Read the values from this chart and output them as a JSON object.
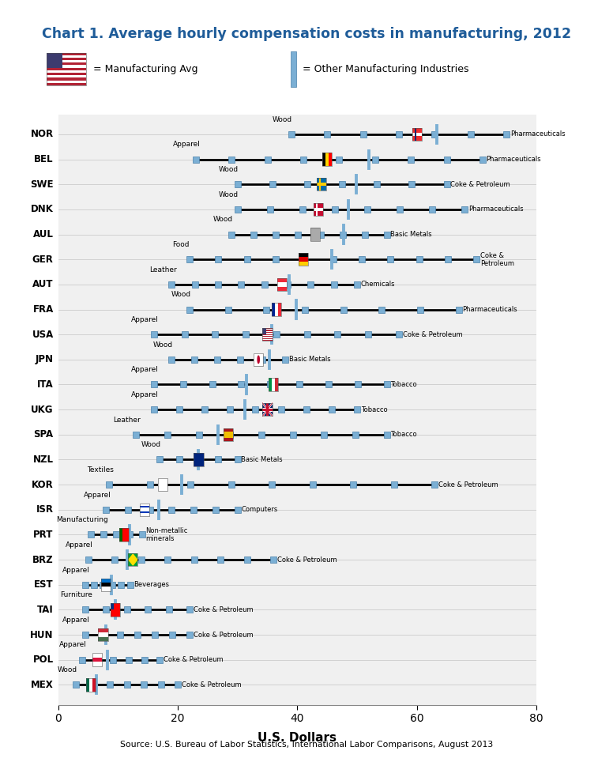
{
  "title": "Chart 1. Average hourly compensation costs in manufacturing, 2012",
  "xlabel": "U.S. Dollars",
  "source": "Source: U.S. Bureau of Labor Statistics, International Labor Comparisons, August 2013",
  "xlim": [
    0,
    80
  ],
  "xticks": [
    0,
    20,
    40,
    60,
    80
  ],
  "bg_color": "#ffffff",
  "plot_bg": "#f0f0f0",
  "title_color": "#1F5C99",
  "grid_color": "#cccccc",
  "marker_color": "#7BAFD4",
  "marker_edge_color": "#4a80aa",
  "line_color": "#000000",
  "avg_line_color": "#7BAFD4",
  "countries": [
    "NOR",
    "BEL",
    "SWE",
    "DNK",
    "AUL",
    "GER",
    "AUT",
    "FRA",
    "USA",
    "JPN",
    "ITA",
    "UKG",
    "SPA",
    "NZL",
    "KOR",
    "ISR",
    "PRT",
    "BRZ",
    "EST",
    "TAI",
    "HUN",
    "POL",
    "MEX"
  ],
  "avg": [
    63.4,
    52.0,
    49.8,
    48.5,
    47.7,
    45.8,
    38.6,
    39.8,
    35.7,
    35.3,
    31.5,
    31.2,
    26.8,
    23.4,
    20.7,
    16.8,
    11.9,
    11.6,
    8.9,
    9.5,
    8.0,
    8.2,
    6.4
  ],
  "mins": [
    39.0,
    23.0,
    30.0,
    30.0,
    29.0,
    22.0,
    19.0,
    22.0,
    16.0,
    19.0,
    16.0,
    16.0,
    13.0,
    17.0,
    8.5,
    8.0,
    5.5,
    5.0,
    4.5,
    4.5,
    4.5,
    4.0,
    3.0
  ],
  "maxs": [
    75.0,
    71.0,
    65.0,
    68.0,
    55.0,
    70.0,
    50.0,
    67.0,
    57.0,
    38.0,
    55.0,
    50.0,
    55.0,
    30.0,
    63.0,
    30.0,
    14.0,
    36.0,
    12.0,
    22.0,
    22.0,
    17.0,
    20.0
  ],
  "flag_x": [
    60.0,
    45.0,
    44.0,
    43.5,
    43.0,
    41.0,
    37.5,
    36.5,
    35.0,
    33.5,
    36.0,
    35.0,
    28.5,
    23.5,
    17.5,
    14.5,
    11.0,
    12.5,
    8.0,
    9.5,
    7.5,
    6.5,
    5.5
  ],
  "min_labels": [
    "Wood",
    "Apparel",
    "Wood",
    "Wood",
    "Wood",
    "Food",
    "Leather",
    "Wood",
    "Apparel",
    "Wood",
    "Apparel",
    "Apparel",
    "Leather",
    "Wood",
    "Textiles",
    "Apparel",
    "Manufacturing",
    "Apparel",
    "Apparel",
    "Furniture",
    "Apparel",
    "Apparel",
    "Wood"
  ],
  "max_labels": [
    "Pharmaceuticals",
    "Pharmaceuticals",
    "Coke & Petroleum",
    "Pharmaceuticals",
    "Basic Metals",
    "Coke &\nPetroleum",
    "Chemicals",
    "Pharmaceuticals",
    "Coke & Petroleum",
    "Basic Metals",
    "Tobacco",
    "Tobacco",
    "Tobacco",
    "Basic Metals",
    "Coke & Petroleum",
    "Computers",
    "Non-metallic\nminerals",
    "Coke & Petroleum",
    "Beverages",
    "Coke & Petroleum",
    "Coke & Petroleum",
    "Coke & Petroleum",
    "Coke & Petroleum"
  ],
  "num_markers": [
    7,
    9,
    7,
    8,
    8,
    11,
    9,
    8,
    9,
    6,
    9,
    9,
    9,
    5,
    9,
    7,
    5,
    8,
    6,
    6,
    7,
    6,
    7
  ],
  "flag_data": {
    "NOR": {
      "type": "cross",
      "bg": "#EF2B2D",
      "cross_h": "#FFFFFF",
      "cross_v": "#002868"
    },
    "BEL": {
      "type": "tricolor_v",
      "c1": "#000000",
      "c2": "#FFD700",
      "c3": "#FF0000"
    },
    "SWE": {
      "type": "cross",
      "bg": "#006AA7",
      "cross_h": "#FECC02",
      "cross_v": "#FECC02"
    },
    "DNK": {
      "type": "cross",
      "bg": "#C60C30",
      "cross_h": "#FFFFFF",
      "cross_v": "#FFFFFF"
    },
    "AUL": {
      "type": "union_jack_blue",
      "bg": "#00247D",
      "cross": "#FFFFFF"
    },
    "GER": {
      "type": "tricolor_h",
      "c1": "#000000",
      "c2": "#DD0000",
      "c3": "#FFCE00"
    },
    "AUT": {
      "type": "tricolor_h",
      "c1": "#ED2939",
      "c2": "#FFFFFF",
      "c3": "#ED2939"
    },
    "FRA": {
      "type": "tricolor_v",
      "c1": "#002395",
      "c2": "#FFFFFF",
      "c3": "#ED2939"
    },
    "USA": {
      "type": "usa",
      "red": "#B22234",
      "white": "#FFFFFF",
      "blue": "#3C3B6E"
    },
    "JPN": {
      "type": "japan",
      "bg": "#FFFFFF",
      "circle": "#BC002D"
    },
    "ITA": {
      "type": "tricolor_v",
      "c1": "#009246",
      "c2": "#FFFFFF",
      "c3": "#CE2B37"
    },
    "UKG": {
      "type": "union_jack",
      "bg": "#012169",
      "white": "#FFFFFF",
      "red": "#C8102E"
    },
    "SPA": {
      "type": "spain",
      "c1": "#AA151B",
      "c2": "#F1BF00"
    },
    "NZL": {
      "type": "nzl",
      "bg": "#00247D"
    },
    "KOR": {
      "type": "korea",
      "bg": "#FFFFFF"
    },
    "ISR": {
      "type": "israel",
      "bg": "#FFFFFF",
      "stripe": "#0038B8"
    },
    "PRT": {
      "type": "portugal",
      "c1": "#006600",
      "c2": "#FF0000"
    },
    "BRZ": {
      "type": "brazil",
      "c1": "#009C3B",
      "c2": "#FEDF00"
    },
    "EST": {
      "type": "tricolor_h",
      "c1": "#0072CE",
      "c2": "#000000",
      "c3": "#FFFFFF"
    },
    "TAI": {
      "type": "taiwan",
      "c1": "#FE0000",
      "c2": "#003082"
    },
    "HUN": {
      "type": "tricolor_h",
      "c1": "#CE2939",
      "c2": "#FFFFFF",
      "c3": "#477050"
    },
    "POL": {
      "type": "tricolor_h",
      "c1": "#FFFFFF",
      "c2": "#DC143C",
      "c3": "#FFFFFF"
    },
    "MEX": {
      "type": "tricolor_v",
      "c1": "#006847",
      "c2": "#FFFFFF",
      "c3": "#CE1126"
    }
  }
}
